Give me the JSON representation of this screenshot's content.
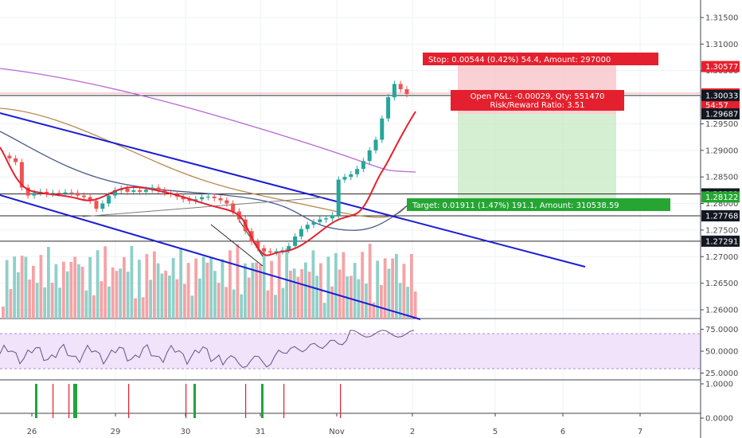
{
  "chart_data": {
    "type": "candlestick",
    "x_ticks": [
      "26",
      "29",
      "30",
      "31",
      "Nov",
      "2",
      "5",
      "6",
      "7"
    ],
    "price_axis": {
      "ticks": [
        "1.31500",
        "1.31000",
        "1.30500",
        "1.30000",
        "1.29500",
        "1.29000",
        "1.28500",
        "1.28000",
        "1.27500",
        "1.27000",
        "1.26500",
        "1.26000"
      ],
      "ylim": [
        1.2575,
        1.3175
      ]
    },
    "rsi_axis": {
      "ticks": [
        "75.0000",
        "50.0000",
        "25.0000"
      ],
      "ylim": [
        15,
        85
      ],
      "band": [
        30,
        70
      ]
    },
    "signal_axis": {
      "ticks": [
        "1.0000",
        "0.0000"
      ]
    },
    "horizontal_levels": [
      1.30033,
      1.28181,
      1.27768,
      1.27291
    ],
    "price_labels": [
      {
        "text": "1.30577",
        "value": 1.30577,
        "color": "#e5202e"
      },
      {
        "text": "1.30062",
        "value": 1.30062,
        "color": "#e5202e"
      },
      {
        "text": "54:57",
        "value": 1.2985,
        "color": "#e5202e"
      },
      {
        "text": "1.30033",
        "value": 1.30033,
        "color": "#131722"
      },
      {
        "text": "1.29687",
        "value": 1.29687,
        "color": "#131722"
      },
      {
        "text": "1.28181",
        "value": 1.28181,
        "color": "#131722"
      },
      {
        "text": "1.28122",
        "value": 1.28122,
        "color": "#26a533"
      },
      {
        "text": "1.27768",
        "value": 1.27768,
        "color": "#131722"
      },
      {
        "text": "1.27291",
        "value": 1.27291,
        "color": "#131722"
      }
    ],
    "position": {
      "entry": 1.30033,
      "stop": 1.30577,
      "target": 1.28122,
      "stop_label": "Stop: 0.00544 (0.42%) 54.4, Amount: 297000",
      "open_label": "Open P&L: -0.00029, Qty: 551470",
      "rr_label": "Risk/Reward Ratio: 3.51",
      "target_label": "Target: 0.01911 (1.47%) 191.1, Amount: 310538.59"
    },
    "price_series": [
      1.289,
      1.2885,
      1.2878,
      1.283,
      1.2815,
      1.282,
      1.2822,
      1.2818,
      1.282,
      1.2819,
      1.2821,
      1.282,
      1.2815,
      1.2812,
      1.2805,
      1.279,
      1.28,
      1.2815,
      1.2825,
      1.2828,
      1.2822,
      1.2825,
      1.2822,
      1.2826,
      1.283,
      1.2825,
      1.282,
      1.2818,
      1.2813,
      1.2808,
      1.2805,
      1.2808,
      1.2812,
      1.2813,
      1.281,
      1.2806,
      1.28,
      1.2785,
      1.277,
      1.2748,
      1.2728,
      1.2716,
      1.271,
      1.2708,
      1.271,
      1.2712,
      1.272,
      1.2738,
      1.2752,
      1.276,
      1.2765,
      1.277,
      1.2772,
      1.2778,
      1.2845,
      1.285,
      1.2855,
      1.2865,
      1.288,
      1.29,
      1.292,
      1.296,
      1.3,
      1.3025,
      1.3015,
      1.3006
    ]
  }
}
